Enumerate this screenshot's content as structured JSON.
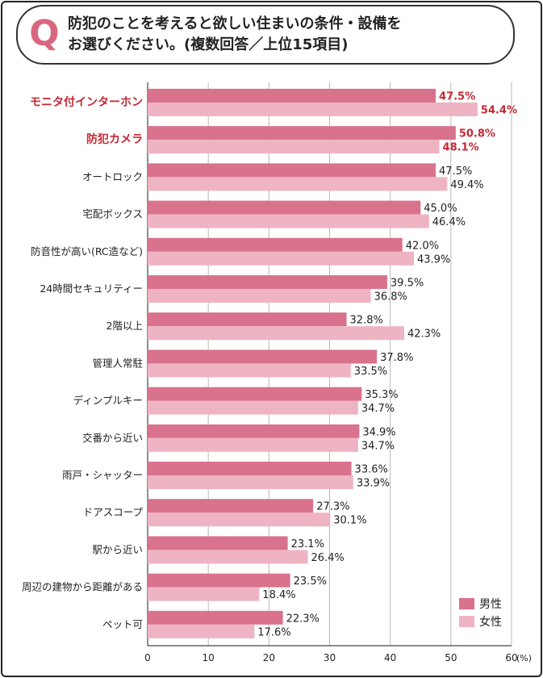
{
  "question": {
    "mark": "Q",
    "line1": "防犯のことを考えると欲しい住まいの条件・設備を",
    "line2": "お選びください。(複数回答／上位15項目)"
  },
  "colors": {
    "male": "#d9728c",
    "female": "#eeb4c3",
    "highlight": "#c62834",
    "text": "#222222"
  },
  "chart_data": {
    "type": "bar",
    "orientation": "horizontal",
    "categories": [
      "モニタ付インターホン",
      "防犯カメラ",
      "オートロック",
      "宅配ボックス",
      "防音性が高い(RC造など)",
      "24時間セキュリティー",
      "2階以上",
      "管理人常駐",
      "ディンプルキー",
      "交番から近い",
      "雨戸・シャッター",
      "ドアスコープ",
      "駅から近い",
      "周辺の建物から距離がある",
      "ペット可"
    ],
    "highlighted_categories": [
      0,
      1
    ],
    "series": [
      {
        "name": "男性",
        "values": [
          47.5,
          50.8,
          47.5,
          45.0,
          42.0,
          39.5,
          32.8,
          37.8,
          35.3,
          34.9,
          33.6,
          27.3,
          23.1,
          23.5,
          22.3
        ]
      },
      {
        "name": "女性",
        "values": [
          54.4,
          48.1,
          49.4,
          46.4,
          43.9,
          36.8,
          42.3,
          33.5,
          34.7,
          34.7,
          33.9,
          30.1,
          26.4,
          18.4,
          17.6
        ]
      }
    ],
    "value_labels": [
      [
        "47.5%",
        "50.8%",
        "47.5%",
        "45.0%",
        "42.0%",
        "39.5%",
        "32.8%",
        "37.8%",
        "35.3%",
        "34.9%",
        "33.6%",
        "27.3%",
        "23.1%",
        "23.5%",
        "22.3%"
      ],
      [
        "54.4%",
        "48.1%",
        "49.4%",
        "46.4%",
        "43.9%",
        "36.8%",
        "42.3%",
        "33.5%",
        "34.7%",
        "34.7%",
        "33.9%",
        "30.1%",
        "26.4%",
        "18.4%",
        "17.6%"
      ]
    ],
    "xlim": [
      0,
      60
    ],
    "xticks": [
      0,
      10,
      20,
      30,
      40,
      50,
      60
    ],
    "xunit": "(%)",
    "grid": true,
    "legend_position": "bottom-right"
  }
}
